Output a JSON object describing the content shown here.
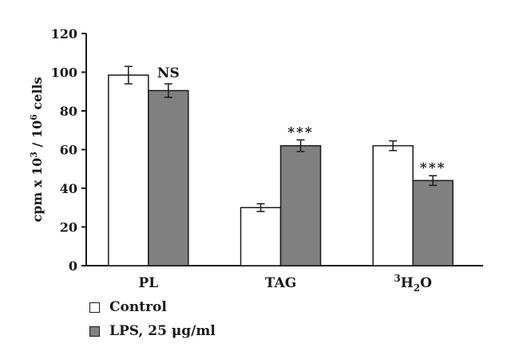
{
  "chart_data": {
    "type": "bar",
    "categories": [
      "PL",
      "TAG",
      "H2O"
    ],
    "category_labels": [
      {
        "sup": "",
        "main": "PL",
        "sub": "",
        "tail": ""
      },
      {
        "sup": "",
        "main": "TAG",
        "sub": "",
        "tail": ""
      },
      {
        "sup": "3",
        "main": "H",
        "sub": "2",
        "tail": "O"
      }
    ],
    "series": [
      {
        "name": "Control",
        "values": [
          98.5,
          30,
          62
        ],
        "errors": [
          4.5,
          2,
          2.5
        ],
        "color": "#ffffff"
      },
      {
        "name": "LPS, 25 μg/ml",
        "values": [
          90.5,
          62,
          44
        ],
        "errors": [
          3.5,
          3,
          2.5
        ],
        "color": "#808080"
      }
    ],
    "annotations": [
      {
        "category": 0,
        "series": 1,
        "text": "NS"
      },
      {
        "category": 1,
        "series": 1,
        "text": "***"
      },
      {
        "category": 2,
        "series": 1,
        "text": "***"
      }
    ],
    "ylabel": {
      "main": "cpm x 10",
      "sup1": "3",
      "mid": " / 10",
      "sup2": "6",
      "tail": " cells"
    },
    "xlabel": "",
    "ylim": [
      0,
      120
    ],
    "yticks": [
      0,
      20,
      40,
      60,
      80,
      100,
      120
    ],
    "grid": false,
    "legend_position": "bottom-left"
  },
  "legend": {
    "control_label": "Control",
    "lps_label": "LPS, 25 μg/ml"
  }
}
